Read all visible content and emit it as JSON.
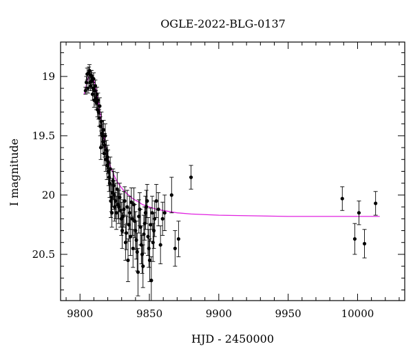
{
  "chart_data": {
    "type": "scatter",
    "title": "OGLE-2022-BLG-0137",
    "xlabel": "HJD - 2450000",
    "ylabel": "I magnitude",
    "xlim": [
      9786,
      10034
    ],
    "ylim": [
      20.89,
      18.71
    ],
    "y_inverted": true,
    "xticks": [
      9800,
      9850,
      9900,
      9950,
      10000
    ],
    "yticks": [
      19,
      19.5,
      20,
      20.5
    ],
    "xtick_labels": [
      "9800",
      "9850",
      "9900",
      "9950",
      "10000"
    ],
    "ytick_labels": [
      "19",
      "19.5",
      "20",
      "20.5"
    ],
    "grid": false,
    "colors": {
      "points": "#000000",
      "model": "#e020e0"
    },
    "series": [
      {
        "kind": "points",
        "x": [
          9804,
          9804.6,
          9805.2,
          9805.8,
          9806.4,
          9806.8,
          9807.2,
          9807.6,
          9808,
          9808.3,
          9808.6,
          9809,
          9809.4,
          9809.8,
          9810.2,
          9810.6,
          9811,
          9811.4,
          9811.8,
          9812.2,
          9812.6,
          9813,
          9813.4,
          9813.8,
          9814.2,
          9814.6,
          9815,
          9815.4,
          9815.8,
          9816.2,
          9816.6,
          9817,
          9817.4,
          9817.8,
          9818.2,
          9818.6,
          9819,
          9819.4,
          9819.8,
          9820.2,
          9820.6,
          9821,
          9821.4,
          9821.8,
          9822.2,
          9822.6,
          9823,
          9823.4,
          9823.8,
          9824.2,
          9824.6,
          9825,
          9825.6,
          9826.2,
          9826.8,
          9827.4,
          9828,
          9828.6,
          9829.2,
          9829.8,
          9830.4,
          9831,
          9831.6,
          9832.2,
          9832.8,
          9833.4,
          9834,
          9834.6,
          9835.2,
          9835.8,
          9836.4,
          9837,
          9837.6,
          9838.2,
          9838.8,
          9839.4,
          9840,
          9840.6,
          9841.2,
          9841.8,
          9842.4,
          9843,
          9843.6,
          9844.2,
          9844.8,
          9845.4,
          9846,
          9846.6,
          9847.2,
          9847.8,
          9848.4,
          9849,
          9849.6,
          9850.2,
          9850.8,
          9851.4,
          9852,
          9852.6,
          9853.2,
          9853.8,
          9855,
          9856.5,
          9858,
          9859.5,
          9861,
          9866,
          9868.5,
          9871,
          9880,
          9989,
          9998,
          10001,
          10005,
          10013
        ],
        "y": [
          19.12,
          19.05,
          18.98,
          19.1,
          18.97,
          18.95,
          19.05,
          19.08,
          18.99,
          19.0,
          19.04,
          19.15,
          19.1,
          19.02,
          19.2,
          19.12,
          19.08,
          19.18,
          19.22,
          19.15,
          19.28,
          19.2,
          19.3,
          19.35,
          19.25,
          19.42,
          19.6,
          19.38,
          19.48,
          19.5,
          19.55,
          19.45,
          19.65,
          19.58,
          19.5,
          19.7,
          19.62,
          19.75,
          19.68,
          19.72,
          19.8,
          19.85,
          19.9,
          19.78,
          20.05,
          20.02,
          20.15,
          19.98,
          19.88,
          19.92,
          20.0,
          20.1,
          20.05,
          20.15,
          19.95,
          20.08,
          20.1,
          20.02,
          20.13,
          20.2,
          20.3,
          20.18,
          20.12,
          20.05,
          20.4,
          20.32,
          20.1,
          20.55,
          20.25,
          20.15,
          20.35,
          20.06,
          20.2,
          20.45,
          20.08,
          20.22,
          20.3,
          20.38,
          20.48,
          20.65,
          20.18,
          20.12,
          20.27,
          20.42,
          20.5,
          20.6,
          20.33,
          20.24,
          20.15,
          20.1,
          20.05,
          20.35,
          20.45,
          20.55,
          20.25,
          20.72,
          20.15,
          20.4,
          20.3,
          20.2,
          20.05,
          20.12,
          20.42,
          20.2,
          20.15,
          20.0,
          20.45,
          20.37,
          19.85,
          20.03,
          20.37,
          20.15,
          20.41,
          20.07
        ],
        "yerr": [
          0.03,
          0.05,
          0.05,
          0.04,
          0.05,
          0.05,
          0.04,
          0.04,
          0.04,
          0.05,
          0.05,
          0.05,
          0.05,
          0.05,
          0.06,
          0.05,
          0.05,
          0.06,
          0.06,
          0.06,
          0.06,
          0.06,
          0.06,
          0.07,
          0.07,
          0.08,
          0.1,
          0.08,
          0.1,
          0.1,
          0.1,
          0.08,
          0.1,
          0.1,
          0.1,
          0.1,
          0.08,
          0.12,
          0.1,
          0.1,
          0.12,
          0.12,
          0.12,
          0.1,
          0.14,
          0.12,
          0.12,
          0.12,
          0.1,
          0.12,
          0.12,
          0.12,
          0.15,
          0.14,
          0.14,
          0.12,
          0.14,
          0.12,
          0.14,
          0.14,
          0.15,
          0.14,
          0.15,
          0.12,
          0.15,
          0.14,
          0.14,
          0.18,
          0.14,
          0.14,
          0.16,
          0.12,
          0.14,
          0.16,
          0.14,
          0.14,
          0.16,
          0.16,
          0.16,
          0.2,
          0.14,
          0.14,
          0.15,
          0.16,
          0.16,
          0.18,
          0.16,
          0.14,
          0.14,
          0.14,
          0.14,
          0.16,
          0.16,
          0.18,
          0.14,
          0.2,
          0.14,
          0.16,
          0.15,
          0.15,
          0.14,
          0.14,
          0.16,
          0.14,
          0.15,
          0.15,
          0.15,
          0.15,
          0.1,
          0.1,
          0.13,
          0.1,
          0.12,
          0.1
        ]
      },
      {
        "kind": "model",
        "x": [
          9803,
          9804,
          9805,
          9806,
          9807,
          9808,
          9809,
          9810,
          9811,
          9812,
          9813,
          9814,
          9815,
          9816,
          9817,
          9818,
          9819,
          9820,
          9821,
          9822,
          9823,
          9824,
          9826,
          9828,
          9830,
          9832,
          9835,
          9838,
          9841,
          9845,
          9850,
          9855,
          9860,
          9870,
          9880,
          9900,
          9950,
          10000,
          10016
        ],
        "y": [
          19.15,
          19.1,
          19.05,
          19.01,
          18.99,
          18.99,
          19.0,
          19.03,
          19.08,
          19.14,
          19.2,
          19.27,
          19.34,
          19.42,
          19.5,
          19.57,
          19.63,
          19.68,
          19.72,
          19.76,
          19.79,
          19.82,
          19.87,
          19.91,
          19.94,
          19.97,
          20.0,
          20.03,
          20.05,
          20.08,
          20.1,
          20.12,
          20.13,
          20.15,
          20.16,
          20.17,
          20.18,
          20.18,
          20.18
        ]
      }
    ]
  }
}
